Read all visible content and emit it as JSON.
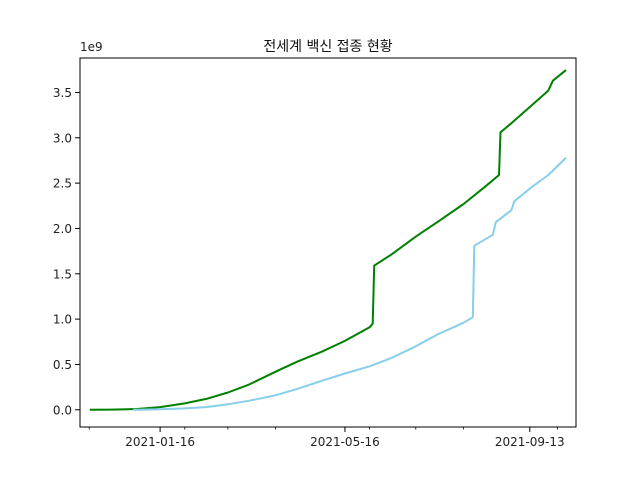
{
  "chart_data": {
    "type": "line",
    "title": "전세계 백신 접종 현황",
    "xlabel": "",
    "ylabel": "",
    "y_multiplier": "1e9",
    "xlim": [
      "2020-11-25",
      "2021-10-13"
    ],
    "ylim": [
      -0.19,
      3.88
    ],
    "grid": false,
    "legend": "none",
    "x_ticks": [
      "2021-01-16",
      "2021-05-16",
      "2021-09-13"
    ],
    "x_minor_ticks": [
      "2020-12-01",
      "2021-02-01",
      "2021-03-01",
      "2021-04-01",
      "2021-06-01",
      "2021-07-01",
      "2021-08-01",
      "2021-10-01"
    ],
    "y_ticks": [
      "0.0",
      "0.5",
      "1.0",
      "1.5",
      "2.0",
      "2.5",
      "3.0",
      "3.5"
    ],
    "series": [
      {
        "color": "#008000",
        "points": [
          [
            "2020-12-02",
            0.0
          ],
          [
            "2020-12-15",
            0.002
          ],
          [
            "2021-01-01",
            0.008
          ],
          [
            "2021-01-16",
            0.03
          ],
          [
            "2021-02-01",
            0.07
          ],
          [
            "2021-02-15",
            0.12
          ],
          [
            "2021-03-01",
            0.19
          ],
          [
            "2021-03-15",
            0.28
          ],
          [
            "2021-04-01",
            0.42
          ],
          [
            "2021-04-15",
            0.53
          ],
          [
            "2021-05-01",
            0.64
          ],
          [
            "2021-05-16",
            0.76
          ],
          [
            "2021-06-01",
            0.91
          ],
          [
            "2021-06-03",
            0.95
          ],
          [
            "2021-06-04",
            1.59
          ],
          [
            "2021-06-15",
            1.71
          ],
          [
            "2021-07-01",
            1.91
          ],
          [
            "2021-07-15",
            2.07
          ],
          [
            "2021-08-01",
            2.27
          ],
          [
            "2021-08-15",
            2.46
          ],
          [
            "2021-08-24",
            2.59
          ],
          [
            "2021-08-25",
            3.06
          ],
          [
            "2021-09-01",
            3.16
          ],
          [
            "2021-09-13",
            3.34
          ],
          [
            "2021-09-25",
            3.52
          ],
          [
            "2021-09-28",
            3.63
          ],
          [
            "2021-10-06",
            3.74
          ]
        ]
      },
      {
        "color": "#87ceeb",
        "points": [
          [
            "2020-12-30",
            0.0
          ],
          [
            "2021-01-16",
            0.005
          ],
          [
            "2021-02-01",
            0.015
          ],
          [
            "2021-02-15",
            0.03
          ],
          [
            "2021-03-01",
            0.06
          ],
          [
            "2021-03-15",
            0.1
          ],
          [
            "2021-04-01",
            0.16
          ],
          [
            "2021-04-15",
            0.23
          ],
          [
            "2021-05-01",
            0.32
          ],
          [
            "2021-05-16",
            0.4
          ],
          [
            "2021-06-01",
            0.48
          ],
          [
            "2021-06-15",
            0.57
          ],
          [
            "2021-07-01",
            0.7
          ],
          [
            "2021-07-15",
            0.83
          ],
          [
            "2021-08-01",
            0.96
          ],
          [
            "2021-08-07",
            1.02
          ],
          [
            "2021-08-08",
            1.81
          ],
          [
            "2021-08-20",
            1.93
          ],
          [
            "2021-08-22",
            2.07
          ],
          [
            "2021-09-01",
            2.2
          ],
          [
            "2021-09-03",
            2.3
          ],
          [
            "2021-09-13",
            2.44
          ],
          [
            "2021-09-25",
            2.59
          ],
          [
            "2021-10-06",
            2.77
          ]
        ]
      }
    ]
  }
}
